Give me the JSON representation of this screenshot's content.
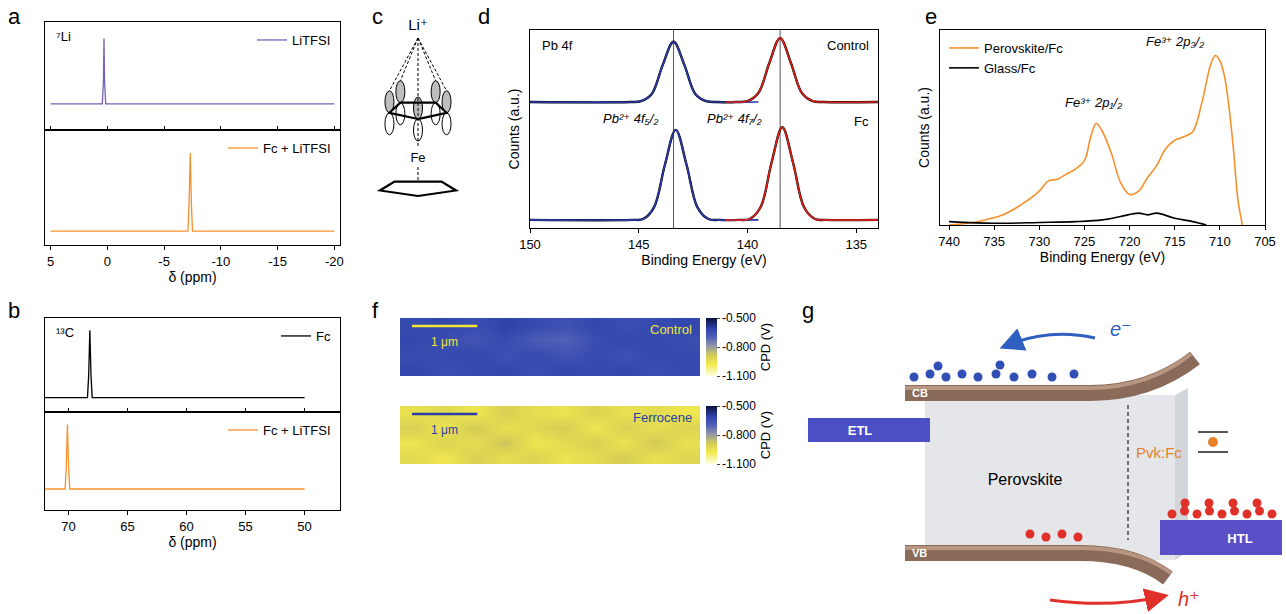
{
  "chart_data": [
    {
      "type": "line",
      "panel": "a",
      "annotations": [
        "⁷Li"
      ],
      "xlim": [
        5.5,
        -20.5
      ],
      "xticks": [
        5,
        0,
        -5,
        -10,
        -15,
        -20
      ],
      "ylim": [
        -0.35,
        1.1
      ],
      "grid": false,
      "tick_labels": false,
      "legend": "upper right",
      "series": [
        {
          "name": "LiTFSI",
          "color": "#7b5fb5",
          "x": [
            5,
            0.45,
            0.35,
            0.3,
            0.25,
            0.15,
            -20
          ],
          "values": [
            0,
            0,
            0.3,
            0.88,
            0.3,
            0,
            0
          ]
        }
      ]
    },
    {
      "type": "line",
      "xlabel": "δ (ppm)",
      "xlim": [
        5.5,
        -20.5
      ],
      "xticks": [
        5,
        0,
        -5,
        -10,
        -15,
        -20
      ],
      "ylim": [
        -0.15,
        1.1
      ],
      "grid": false,
      "tick_labels": "x",
      "legend": "upper right",
      "series": [
        {
          "name": "Fc + LiTFSI",
          "color": "#f5912c",
          "x": [
            5,
            -7.1,
            -7.2,
            -7.3,
            -7.4,
            -7.5,
            -20
          ],
          "values": [
            0,
            0,
            0.3,
            0.85,
            0.3,
            0,
            0
          ]
        }
      ]
    },
    {
      "type": "line",
      "panel": "b",
      "annotations": [
        "¹³C"
      ],
      "xlim": [
        72,
        47
      ],
      "xticks": [
        70,
        65,
        60,
        55,
        50
      ],
      "ylim": [
        -0.2,
        1.1
      ],
      "grid": false,
      "tick_labels": false,
      "legend": "upper right",
      "series": [
        {
          "name": "Fc",
          "color": "#000000",
          "x": [
            75,
            68.4,
            68.3,
            68.2,
            68.1,
            68.0,
            50
          ],
          "values": [
            0,
            0,
            0.3,
            0.93,
            0.3,
            0,
            0
          ]
        }
      ]
    },
    {
      "type": "line",
      "xlabel": "δ (ppm)",
      "xlim": [
        72,
        47
      ],
      "xticks": [
        70,
        65,
        60,
        55,
        50
      ],
      "ylim": [
        -0.3,
        1.1
      ],
      "grid": false,
      "tick_labels": "x",
      "legend": "upper right",
      "series": [
        {
          "name": "Fc + LiTFSI",
          "color": "#f5912c",
          "x": [
            75,
            70.3,
            70.2,
            70.1,
            70.0,
            69.9,
            50
          ],
          "values": [
            0,
            0,
            0.3,
            0.92,
            0.3,
            0,
            0
          ]
        }
      ]
    },
    {
      "type": "line",
      "panel": "d",
      "xlabel": "Binding Energy (eV)",
      "ylabel": "Counts (a.u.)",
      "annotations": [
        "Pb 4f",
        "Pb²⁺ 4f₅/₂",
        "Pb²⁺ 4f₇/₂",
        "Control",
        "Fc"
      ],
      "xlim": [
        150,
        134
      ],
      "xticks": [
        150,
        145,
        140,
        135
      ],
      "ylim": [
        0,
        2.2
      ],
      "grid": false,
      "tick_labels": "x",
      "vlines": [
        143.4,
        138.5
      ],
      "series": [
        {
          "color": "#000000",
          "x": [
            150,
            145.4,
            144.9,
            144.4,
            143.9,
            143.4,
            142.9,
            142.4,
            141.9,
            141.4,
            140.5,
            140,
            139.5,
            139,
            138.5,
            138,
            137.5,
            137,
            136.5,
            134
          ],
          "values": [
            1.4,
            1.4,
            1.41,
            1.49,
            1.81,
            2.07,
            1.81,
            1.49,
            1.41,
            1.4,
            1.4,
            1.41,
            1.5,
            1.83,
            2.11,
            1.83,
            1.5,
            1.41,
            1.4,
            1.4
          ]
        },
        {
          "color": "#2a3aa8",
          "x": [
            150,
            145.4,
            144.9,
            144.4,
            143.9,
            143.4,
            142.9,
            142.4,
            141.9,
            141.4,
            139.5
          ],
          "values": [
            1.4,
            1.4,
            1.41,
            1.49,
            1.81,
            2.07,
            1.81,
            1.49,
            1.41,
            1.4,
            1.4
          ]
        },
        {
          "color": "#e0201a",
          "x": [
            141,
            140.5,
            140,
            139.5,
            139,
            138.5,
            138,
            137.5,
            137,
            136.5,
            134
          ],
          "values": [
            1.4,
            1.4,
            1.41,
            1.5,
            1.83,
            2.11,
            1.83,
            1.5,
            1.41,
            1.4,
            1.4
          ]
        },
        {
          "color": "#000000",
          "x": [
            150,
            145.3,
            144.8,
            144.3,
            143.8,
            143.3,
            142.8,
            142.3,
            141.8,
            141.3,
            140.4,
            139.9,
            139.4,
            138.9,
            138.4,
            137.9,
            137.4,
            136.9,
            136.4,
            134
          ],
          "values": [
            0.09,
            0.09,
            0.1,
            0.23,
            0.7,
            1.09,
            0.7,
            0.23,
            0.1,
            0.09,
            0.09,
            0.1,
            0.23,
            0.72,
            1.12,
            0.72,
            0.23,
            0.1,
            0.09,
            0.09
          ]
        },
        {
          "color": "#2a3aa8",
          "x": [
            150,
            145.3,
            144.8,
            144.3,
            143.8,
            143.3,
            142.8,
            142.3,
            141.8,
            141.3,
            139.5
          ],
          "values": [
            0.09,
            0.09,
            0.1,
            0.23,
            0.7,
            1.09,
            0.7,
            0.23,
            0.1,
            0.09,
            0.09
          ]
        },
        {
          "color": "#e0201a",
          "x": [
            141,
            140.4,
            139.9,
            139.4,
            138.9,
            138.4,
            137.9,
            137.4,
            136.9,
            136.4,
            134
          ],
          "values": [
            0.09,
            0.09,
            0.1,
            0.23,
            0.72,
            1.12,
            0.72,
            0.23,
            0.1,
            0.09,
            0.09
          ]
        }
      ]
    },
    {
      "type": "line",
      "panel": "e",
      "xlabel": "Binding Energy (eV)",
      "ylabel": "Counts (a.u.)",
      "annotations": [
        "Fe³⁺ 2p₁/₂",
        "Fe³⁺ 2p₃/₂"
      ],
      "xlim": [
        741,
        705
      ],
      "xticks": [
        740,
        735,
        730,
        725,
        720,
        715,
        710,
        705
      ],
      "ylim": [
        0,
        1.15
      ],
      "grid": false,
      "tick_labels": "x",
      "legend": "upper left",
      "series": [
        {
          "name": "Perovskite/Fc",
          "color": "#f5912c",
          "x": [
            740,
            738,
            736,
            734,
            732,
            730,
            729,
            728,
            727,
            726,
            725,
            724.3,
            723.7,
            723,
            722,
            721,
            720,
            719,
            718,
            717,
            716,
            715,
            714,
            713,
            712,
            711,
            710.5,
            710,
            709.5,
            709,
            708.5,
            708,
            707.5
          ],
          "values": [
            0.0,
            0.01,
            0.03,
            0.06,
            0.12,
            0.2,
            0.26,
            0.27,
            0.3,
            0.33,
            0.38,
            0.52,
            0.6,
            0.55,
            0.42,
            0.25,
            0.18,
            0.2,
            0.28,
            0.35,
            0.45,
            0.5,
            0.52,
            0.55,
            0.72,
            0.95,
            1.0,
            0.97,
            0.88,
            0.7,
            0.45,
            0.15,
            0.0
          ]
        },
        {
          "name": "Glass/Fc",
          "color": "#000000",
          "x": [
            740,
            735,
            730,
            726,
            723,
            721,
            719,
            718,
            717,
            715,
            713,
            711.5
          ],
          "values": [
            0.02,
            0.01,
            0.015,
            0.02,
            0.03,
            0.05,
            0.07,
            0.06,
            0.07,
            0.04,
            0.02,
            0.0
          ]
        }
      ]
    },
    {
      "type": "heatmap",
      "panel": "f",
      "title": "Control",
      "xlim": [
        0,
        4.6
      ],
      "ylim": [
        0,
        0.9
      ],
      "grid": false,
      "tick_labels": false,
      "scale_bar": {
        "length": 1,
        "label": "1 μm"
      },
      "colorbar": {
        "range": [
          -1.1,
          -0.5
        ],
        "label": "CPD (V)",
        "ticks": [
          {
            "value": -0.5,
            "label": "-0.500"
          },
          {
            "value": -0.8,
            "label": "-0.800"
          },
          {
            "value": -1.1,
            "label": "-1.100"
          }
        ]
      },
      "cells": [
        [
          -0.62,
          -0.64,
          -0.63,
          -0.62,
          -0.64,
          -0.62,
          -0.63,
          -0.62,
          -0.64,
          -0.63
        ],
        [
          -0.64,
          -0.63,
          -0.62,
          -0.65,
          -0.63,
          -0.66,
          -0.63,
          -0.65,
          -0.62,
          -0.63
        ],
        [
          -0.62,
          -0.64,
          -0.66,
          -0.63,
          -0.68,
          -0.7,
          -0.64,
          -0.62,
          -0.63,
          -0.64
        ],
        [
          -0.63,
          -0.62,
          -0.64,
          -0.61,
          -0.63,
          -0.65,
          -0.62,
          -0.64,
          -0.63,
          -0.62
        ]
      ]
    },
    {
      "type": "heatmap",
      "title": "Ferrocene",
      "xlim": [
        0,
        4.6
      ],
      "ylim": [
        0,
        0.9
      ],
      "grid": false,
      "tick_labels": false,
      "scale_bar": {
        "length": 1,
        "label": "1 μm"
      },
      "colorbar": {
        "range": [
          -1.1,
          -0.5
        ],
        "label": "CPD (V)",
        "ticks": [
          {
            "value": -0.5,
            "label": "-0.500"
          },
          {
            "value": -0.8,
            "label": "-0.800"
          },
          {
            "value": -1.1,
            "label": "-1.100"
          }
        ]
      },
      "cells": [
        [
          -0.93,
          -0.97,
          -0.9,
          -0.94,
          -0.91,
          -0.96,
          -0.93,
          -0.89,
          -0.95,
          -0.92
        ],
        [
          -0.96,
          -0.91,
          -0.94,
          -0.87,
          -0.97,
          -0.93,
          -0.9,
          -0.96,
          -0.88,
          -0.95
        ],
        [
          -0.9,
          -0.96,
          -0.88,
          -0.95,
          -0.92,
          -0.89,
          -0.97,
          -0.9,
          -0.94,
          -0.91
        ],
        [
          -0.95,
          -0.92,
          -0.97,
          -0.9,
          -0.94,
          -0.96,
          -0.91,
          -0.95,
          -0.93,
          -0.97
        ]
      ]
    }
  ],
  "diagram_c": {
    "panel": "c",
    "labels": [
      "Li⁺",
      "Fe"
    ]
  },
  "diagram_g": {
    "panel": "g",
    "labels": {
      "etl": "ETL",
      "htl": "HTL",
      "cb": "CB",
      "vb": "VB",
      "perovskite": "Perovskite",
      "interface": "Pvk:Fc",
      "electron": "e⁻",
      "hole": "h⁺"
    }
  }
}
